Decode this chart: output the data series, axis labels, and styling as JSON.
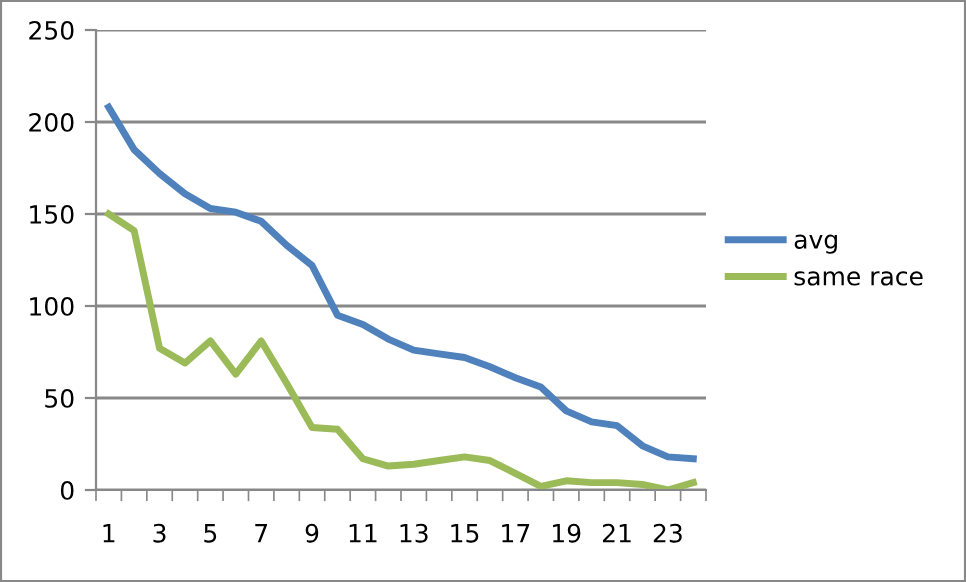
{
  "chart_data": {
    "type": "line",
    "categories": [
      "1",
      null,
      "3",
      null,
      "5",
      null,
      "7",
      null,
      "9",
      null,
      "11",
      null,
      "13",
      null,
      "15",
      null,
      "17",
      null,
      "19",
      null,
      "21",
      null,
      "23",
      null
    ],
    "series": [
      {
        "name": "avg",
        "color": "#4f81bd",
        "values": [
          208,
          185,
          172,
          161,
          153,
          151,
          146,
          133,
          122,
          95,
          90,
          82,
          76,
          74,
          72,
          67,
          61,
          56,
          43,
          37,
          35,
          24,
          18,
          17
        ]
      },
      {
        "name": "same race",
        "color": "#9bbb59",
        "values": [
          150,
          141,
          77,
          69,
          81,
          63,
          81,
          58,
          34,
          33,
          17,
          13,
          14,
          16,
          18,
          16,
          9,
          2,
          5,
          4,
          4,
          3,
          0,
          4
        ]
      }
    ],
    "ylim": [
      0,
      250
    ],
    "yticks": [
      0,
      50,
      100,
      150,
      200,
      250
    ],
    "grid": "y",
    "legend": "right",
    "marker": "none",
    "line_style": "solid"
  }
}
